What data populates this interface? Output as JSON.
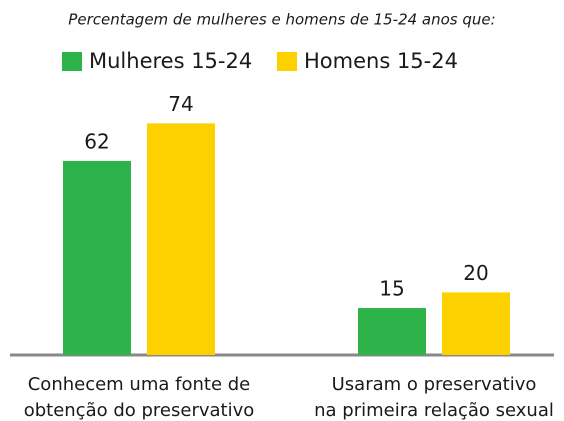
{
  "chart_data": {
    "type": "bar",
    "title": "Percentagem de mulheres e homens de 15-24 anos que:",
    "categories": [
      "Conhecem uma fonte de\nobtenção do preservativo",
      "Usaram o preservativo\nna primeira relação sexual"
    ],
    "series": [
      {
        "name": "Mulheres 15-24",
        "color": "#2db34a",
        "values": [
          62,
          15
        ]
      },
      {
        "name": "Homens 15-24",
        "color": "#fdd000",
        "values": [
          74,
          20
        ]
      }
    ]
  }
}
